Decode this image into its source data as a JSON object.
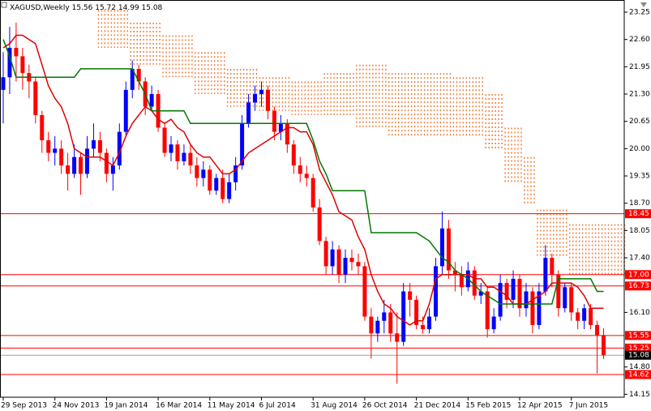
{
  "chart_data": {
    "type": "candlestick",
    "symbol": "XAGUSD,Weekly",
    "up_color": "#0000ff",
    "down_color": "#ff0000",
    "candles": {
      "open": [
        21.4,
        21.7,
        22.4,
        22.2,
        21.8,
        21.6,
        20.8,
        20.2,
        19.9,
        20.0,
        19.6,
        19.4,
        19.8,
        19.4,
        20.0,
        20.2,
        19.9,
        19.4,
        19.6,
        20.4,
        21.4,
        21.9,
        21.6,
        21.0,
        21.3,
        20.5,
        19.9,
        20.1,
        19.7,
        19.9,
        19.6,
        19.3,
        19.5,
        19.0,
        19.3,
        18.8,
        19.2,
        19.6,
        20.6,
        21.1,
        21.3,
        21.4,
        20.9,
        20.4,
        20.6,
        20.1,
        19.6,
        19.4,
        19.3,
        18.6,
        17.8,
        17.2,
        17.6,
        17.0,
        17.4,
        17.3,
        17.2,
        16.0,
        15.6,
        15.9,
        16.1,
        15.6,
        15.4,
        16.6,
        16.4,
        15.8,
        15.7,
        16.0,
        17.2,
        18.1,
        17.1,
        17.0,
        16.7,
        17.1,
        16.5,
        16.6,
        15.7,
        16.0,
        16.8,
        16.4,
        16.9,
        16.2,
        16.6,
        15.8,
        16.6,
        17.4,
        17.0,
        16.2,
        16.7,
        16.1,
        15.9,
        16.2,
        15.8,
        15.56
      ],
      "high": [
        22.3,
        22.9,
        23.0,
        22.4,
        22.0,
        21.7,
        20.9,
        20.4,
        20.3,
        20.2,
        19.9,
        20.1,
        19.9,
        20.3,
        20.6,
        20.4,
        20.0,
        19.8,
        20.6,
        21.6,
        22.1,
        22.0,
        21.7,
        21.5,
        21.4,
        20.6,
        20.3,
        20.2,
        20.1,
        20.1,
        19.8,
        19.7,
        19.6,
        19.4,
        19.5,
        19.4,
        19.8,
        20.8,
        21.3,
        21.5,
        21.6,
        21.5,
        21.0,
        20.8,
        20.7,
        20.2,
        19.8,
        19.6,
        19.4,
        18.8,
        17.9,
        17.8,
        17.7,
        17.6,
        17.6,
        17.5,
        17.3,
        16.2,
        16.0,
        16.4,
        16.3,
        16.1,
        16.8,
        16.8,
        16.5,
        16.0,
        16.2,
        17.4,
        18.5,
        18.3,
        17.3,
        17.2,
        17.3,
        17.2,
        16.8,
        16.7,
        16.2,
        17.0,
        16.9,
        17.1,
        17.0,
        16.8,
        16.7,
        16.8,
        17.7,
        17.5,
        17.1,
        16.8,
        16.8,
        16.2,
        16.3,
        16.3,
        15.9,
        15.72
      ],
      "low": [
        20.6,
        21.3,
        21.6,
        21.4,
        21.2,
        20.6,
        19.9,
        19.7,
        19.6,
        19.4,
        19.0,
        19.3,
        18.9,
        19.3,
        19.8,
        19.7,
        19.2,
        19.0,
        19.5,
        20.3,
        21.2,
        21.4,
        20.8,
        20.9,
        20.4,
        19.8,
        19.7,
        19.5,
        19.6,
        19.4,
        19.1,
        19.1,
        18.9,
        18.9,
        18.7,
        18.7,
        19.0,
        19.5,
        20.5,
        20.9,
        21.0,
        20.7,
        20.2,
        20.2,
        19.9,
        19.4,
        19.2,
        19.1,
        18.5,
        17.7,
        17.0,
        17.0,
        16.8,
        16.8,
        17.1,
        17.0,
        15.9,
        15.0,
        15.4,
        15.6,
        15.4,
        14.4,
        15.3,
        16.0,
        15.7,
        15.6,
        15.6,
        15.9,
        17.0,
        16.9,
        16.6,
        16.5,
        16.6,
        16.4,
        16.3,
        15.5,
        15.6,
        15.9,
        16.2,
        16.2,
        16.0,
        16.0,
        15.6,
        15.7,
        16.5,
        16.7,
        16.0,
        16.1,
        15.9,
        15.7,
        15.7,
        15.7,
        14.65,
        14.99
      ],
      "close": [
        21.7,
        22.4,
        22.2,
        21.8,
        21.6,
        20.8,
        20.2,
        19.9,
        20.0,
        19.6,
        19.4,
        19.8,
        19.4,
        20.0,
        20.2,
        19.9,
        19.4,
        19.6,
        20.4,
        21.4,
        21.9,
        21.6,
        21.0,
        21.3,
        20.5,
        19.9,
        20.1,
        19.7,
        19.9,
        19.6,
        19.3,
        19.5,
        19.0,
        19.3,
        18.8,
        19.2,
        19.6,
        20.6,
        21.1,
        21.3,
        21.4,
        20.9,
        20.4,
        20.6,
        20.1,
        19.6,
        19.4,
        19.3,
        18.6,
        17.8,
        17.2,
        17.6,
        17.0,
        17.4,
        17.3,
        17.2,
        16.0,
        15.6,
        15.9,
        16.1,
        15.6,
        15.4,
        16.6,
        16.4,
        15.8,
        15.7,
        16.0,
        17.2,
        18.1,
        17.1,
        17.0,
        16.7,
        17.1,
        16.5,
        16.6,
        15.7,
        16.0,
        16.8,
        16.4,
        16.9,
        16.2,
        16.6,
        15.8,
        16.6,
        17.4,
        17.0,
        16.2,
        16.7,
        16.1,
        15.9,
        16.2,
        15.8,
        15.56,
        15.08
      ]
    },
    "lines": [
      {
        "color": "#e00000",
        "values": [
          22.4,
          22.5,
          22.7,
          22.7,
          22.6,
          22.5,
          22.0,
          21.5,
          21.2,
          21.0,
          20.6,
          20.0,
          19.9,
          19.8,
          19.8,
          19.8,
          19.7,
          19.6,
          19.9,
          20.3,
          20.6,
          20.8,
          21.0,
          20.9,
          20.7,
          20.6,
          20.7,
          20.5,
          20.4,
          20.1,
          19.9,
          19.8,
          19.8,
          19.6,
          19.4,
          19.4,
          19.5,
          19.7,
          19.9,
          20.0,
          20.1,
          20.2,
          20.3,
          20.4,
          20.5,
          20.5,
          20.4,
          20.4,
          20.1,
          19.5,
          19.2,
          18.9,
          18.5,
          18.4,
          18.3,
          17.9,
          17.6,
          17.0,
          16.6,
          16.3,
          16.2,
          16.0,
          15.9,
          15.8,
          15.9,
          15.9,
          16.3,
          16.9,
          17.0,
          17.0,
          17.0,
          17.0,
          17.0,
          16.9,
          16.9,
          16.7,
          16.7,
          16.6,
          16.5,
          16.3,
          16.3,
          16.3,
          16.4,
          16.5,
          16.6,
          16.8,
          16.8,
          16.8,
          16.8,
          16.7,
          16.5,
          16.2,
          16.2,
          16.2
        ]
      },
      {
        "color": "#007800",
        "values": [
          22.6,
          22.2,
          21.7,
          21.7,
          21.7,
          21.7,
          21.7,
          21.7,
          21.7,
          21.7,
          21.7,
          21.7,
          21.9,
          21.9,
          21.9,
          21.9,
          21.9,
          21.9,
          21.9,
          21.9,
          21.9,
          21.6,
          21.3,
          20.9,
          20.9,
          20.9,
          20.9,
          20.9,
          20.9,
          20.6,
          20.6,
          20.6,
          20.6,
          20.6,
          20.6,
          20.6,
          20.6,
          20.6,
          20.6,
          20.6,
          20.6,
          20.6,
          20.6,
          20.6,
          20.6,
          20.6,
          20.6,
          20.6,
          20.2,
          19.7,
          19.4,
          19.0,
          19.0,
          19.0,
          19.0,
          19.0,
          19.0,
          18.0,
          18.0,
          18.0,
          18.0,
          18.0,
          18.0,
          18.0,
          18.0,
          17.9,
          17.8,
          17.6,
          17.4,
          17.3,
          17.1,
          17.0,
          16.9,
          16.75,
          16.6,
          16.5,
          16.4,
          16.3,
          16.3,
          16.3,
          16.3,
          16.3,
          16.3,
          16.3,
          16.3,
          16.3,
          16.9,
          16.9,
          16.9,
          16.9,
          16.9,
          16.9,
          16.6,
          16.6
        ]
      }
    ],
    "cloud": {
      "color": "#f07830",
      "upper": [
        null,
        null,
        null,
        null,
        null,
        null,
        null,
        null,
        null,
        null,
        null,
        null,
        null,
        null,
        null,
        23.3,
        23.3,
        23.3,
        23.3,
        23.3,
        23.0,
        23.0,
        23.0,
        23.0,
        23.0,
        22.7,
        22.7,
        22.7,
        22.7,
        22.7,
        22.3,
        22.3,
        22.3,
        22.3,
        22.3,
        21.9,
        21.9,
        21.9,
        21.9,
        21.9,
        21.7,
        21.7,
        21.7,
        21.7,
        21.7,
        21.6,
        21.6,
        21.6,
        21.6,
        21.6,
        21.8,
        21.8,
        21.8,
        21.8,
        21.8,
        22.0,
        22.0,
        22.0,
        22.0,
        22.0,
        21.8,
        21.8,
        21.8,
        21.8,
        21.8,
        21.8,
        21.8,
        21.8,
        21.8,
        21.8,
        21.7,
        21.7,
        21.7,
        21.7,
        21.7,
        21.3,
        21.3,
        21.3,
        20.5,
        20.5,
        20.5,
        19.8,
        19.8,
        18.55,
        18.55,
        18.55,
        18.55,
        18.55,
        18.2,
        18.2,
        18.2,
        18.2,
        18.2,
        18.2,
        18.2,
        18.2,
        18.2
      ],
      "lower": [
        null,
        null,
        null,
        null,
        null,
        null,
        null,
        null,
        null,
        null,
        null,
        null,
        null,
        null,
        null,
        22.4,
        22.4,
        22.4,
        22.4,
        22.4,
        22.0,
        22.0,
        22.0,
        22.0,
        22.0,
        21.7,
        21.7,
        21.7,
        21.7,
        21.7,
        21.3,
        21.3,
        21.3,
        21.3,
        21.3,
        21.0,
        21.0,
        21.0,
        21.0,
        21.0,
        20.9,
        20.9,
        20.9,
        20.9,
        20.9,
        20.8,
        20.8,
        20.8,
        20.8,
        20.8,
        20.8,
        20.8,
        20.8,
        20.8,
        20.8,
        20.5,
        20.5,
        20.5,
        20.5,
        20.5,
        20.3,
        20.3,
        20.3,
        20.3,
        20.3,
        20.3,
        20.3,
        20.3,
        20.3,
        20.3,
        20.3,
        20.3,
        20.3,
        20.3,
        20.3,
        20.0,
        20.0,
        20.0,
        19.2,
        19.2,
        19.2,
        18.7,
        18.7,
        17.4,
        17.4,
        17.4,
        17.4,
        17.4,
        17.0,
        17.0,
        17.0,
        17.0,
        17.0,
        17.0,
        17.0,
        17.0,
        17.0
      ]
    },
    "level_color": "#ff0000",
    "levels": [
      18.45,
      {
        "value": 17,
        "label": "17.00"
      },
      16.73,
      15.55,
      15.25,
      14.62
    ],
    "xlim": [
      -0.5,
      96.2
    ],
    "xticks": [
      {
        "value": 0,
        "label": "29 Sep 2013"
      },
      {
        "value": 8,
        "label": "24 Nov 2013"
      },
      {
        "value": 16,
        "label": "19 Jan 2014"
      },
      {
        "value": 24,
        "label": "16 Mar 2014"
      },
      {
        "value": 32,
        "label": "11 May 2014"
      },
      {
        "value": 40,
        "label": "6 Jul 2014"
      },
      {
        "value": 48,
        "label": "31 Aug 2014"
      },
      {
        "value": 56,
        "label": "26 Oct 2014"
      },
      {
        "value": 64,
        "label": "21 Dec 2014"
      },
      {
        "value": 72,
        "label": "15 Feb 2015"
      },
      {
        "value": 80,
        "label": "12 Apr 2015"
      },
      {
        "value": 88,
        "label": "7 Jun 2015"
      }
    ],
    "ylim": [
      14.08,
      23.54
    ],
    "yticks": [
      23.25,
      {
        "value": 22.6,
        "label": "22.60"
      },
      21.95,
      {
        "value": 21.3,
        "label": "21.30"
      },
      20.65,
      {
        "value": 20,
        "label": "20.00"
      },
      19.35,
      {
        "value": 18.7,
        "label": "18.70"
      },
      18.05,
      {
        "value": 17.4,
        "label": "17.40"
      },
      {
        "value": 16.1,
        "label": "16.10"
      },
      {
        "value": 14.8,
        "label": "14.80"
      },
      14.15
    ]
  }
}
